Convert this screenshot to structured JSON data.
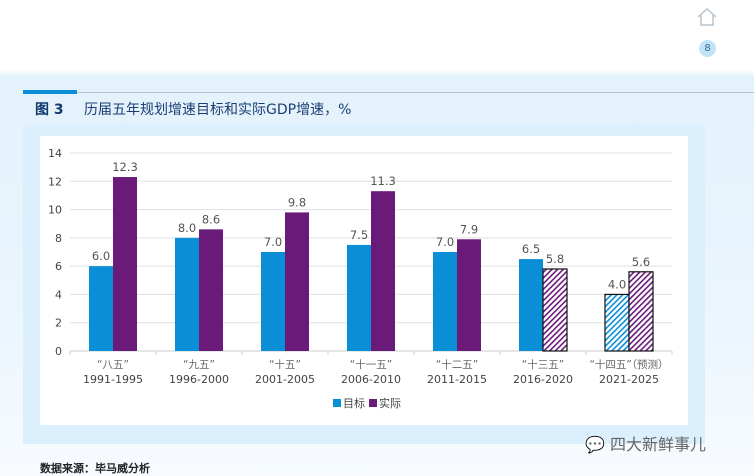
{
  "header": {
    "page_number": "8",
    "home_icon": "home-icon"
  },
  "figure": {
    "label": "图 3",
    "title": "历届五年规划增速目标和实际GDP增速，%"
  },
  "source": "数据来源：毕马威分析",
  "watermark": "四大新鲜事儿",
  "chart_data": {
    "type": "bar",
    "categories": [
      [
        "“八五”",
        "1991-1995"
      ],
      [
        "“九五”",
        "1996-2000"
      ],
      [
        "“十五”",
        "2001-2005"
      ],
      [
        "“十一五”",
        "2006-2010"
      ],
      [
        "“十二五”",
        "2011-2015"
      ],
      [
        "“十三五”",
        "2016-2020"
      ],
      [
        "“十四五”（预测）",
        "2021-2025"
      ]
    ],
    "series": [
      {
        "name": "目标",
        "color": "#0a8fd6",
        "values": [
          6.0,
          8.0,
          7.0,
          7.5,
          7.0,
          6.5,
          4.0
        ],
        "labels": [
          "6.0",
          "8.0",
          "7.0",
          "7.5",
          "7.0",
          "6.5",
          "4.0"
        ],
        "hatched": [
          false,
          false,
          false,
          false,
          false,
          false,
          true
        ]
      },
      {
        "name": "实际",
        "color": "#6a1b7a",
        "values": [
          12.3,
          8.6,
          9.8,
          11.3,
          7.9,
          5.8,
          5.6
        ],
        "labels": [
          "12.3",
          "8.6",
          "9.8",
          "11.3",
          "7.9",
          "5.8",
          "5.6"
        ],
        "hatched": [
          false,
          false,
          false,
          false,
          false,
          true,
          true
        ]
      }
    ],
    "ylim": [
      0,
      14
    ],
    "yticks": [
      "0",
      "2",
      "4",
      "6",
      "8",
      "10",
      "12",
      "14"
    ],
    "grid": true,
    "legend": "bottom"
  }
}
